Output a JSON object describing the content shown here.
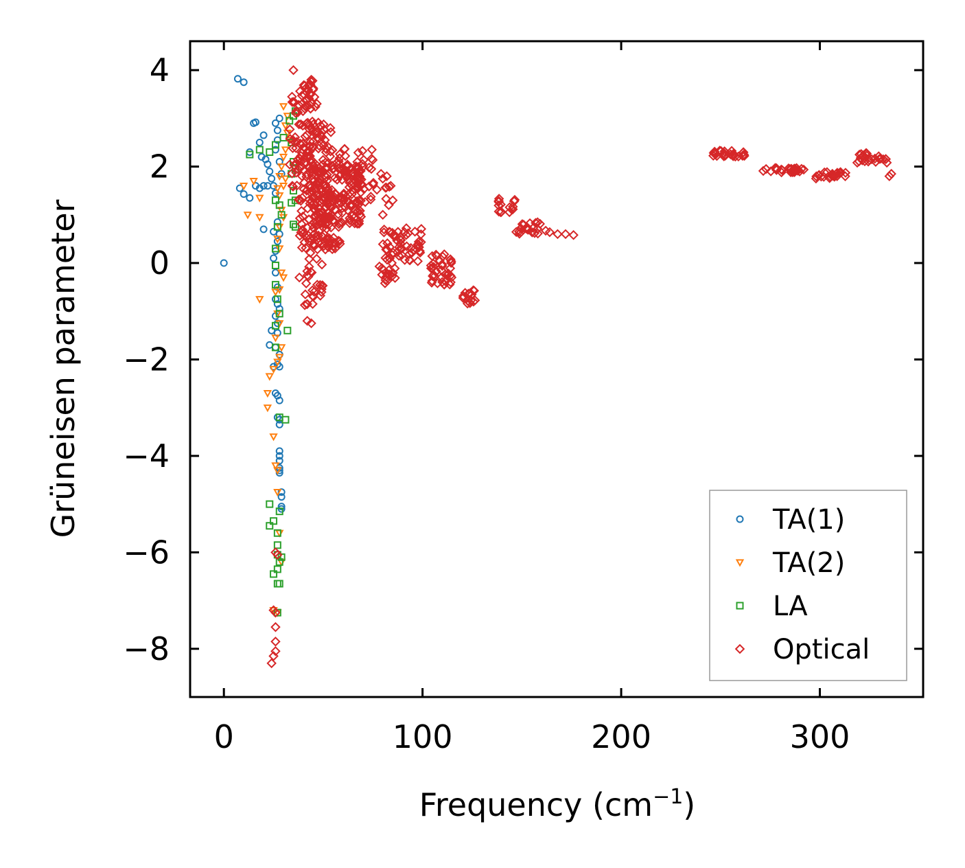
{
  "chart_data": {
    "type": "scatter",
    "title": "",
    "xlabel": "Frequency (cm",
    "xlabel_superscript": "−1",
    "xlabel_suffix": ")",
    "ylabel": "Grüneisen parameter",
    "xlim": [
      -17,
      352
    ],
    "ylim": [
      -9,
      4.6
    ],
    "xticks": [
      0,
      100,
      200,
      300
    ],
    "xtick_labels": [
      "0",
      "100",
      "200",
      "300"
    ],
    "yticks": [
      4,
      2,
      0,
      -2,
      -4,
      -6,
      -8
    ],
    "ytick_labels": [
      "4",
      "2",
      "0",
      "−2",
      "−4",
      "−6",
      "−8"
    ],
    "grid": false,
    "legend_position": "lower-right",
    "series": [
      {
        "name": "TA(1)",
        "marker": "circle",
        "color": "#1f77b4",
        "points": [
          [
            0,
            0
          ],
          [
            7,
            3.82
          ],
          [
            10,
            3.75
          ],
          [
            15,
            2.9
          ],
          [
            16,
            2.92
          ],
          [
            18,
            2.5
          ],
          [
            20,
            2.65
          ],
          [
            13,
            2.3
          ],
          [
            8,
            1.55
          ],
          [
            10,
            1.43
          ],
          [
            13,
            1.35
          ],
          [
            16,
            1.6
          ],
          [
            18,
            1.55
          ],
          [
            20,
            1.6
          ],
          [
            19,
            2.2
          ],
          [
            21,
            2.15
          ],
          [
            22,
            2.05
          ],
          [
            23,
            1.9
          ],
          [
            24,
            1.75
          ],
          [
            25,
            1.6
          ],
          [
            26,
            1.45
          ],
          [
            26,
            2.35
          ],
          [
            27,
            2.55
          ],
          [
            27,
            2.75
          ],
          [
            28,
            3.0
          ],
          [
            26,
            2.9
          ],
          [
            28,
            2.1
          ],
          [
            29,
            1.85
          ],
          [
            22,
            1.6
          ],
          [
            20,
            0.7
          ],
          [
            25,
            0.65
          ],
          [
            27,
            0.85
          ],
          [
            28,
            0.6
          ],
          [
            27,
            0.45
          ],
          [
            26,
            0.25
          ],
          [
            25,
            0.1
          ],
          [
            26,
            -0.2
          ],
          [
            27,
            -0.5
          ],
          [
            26,
            -0.75
          ],
          [
            27,
            -0.85
          ],
          [
            28,
            -0.95
          ],
          [
            26,
            -1.1
          ],
          [
            27,
            -1.25
          ],
          [
            27,
            -1.45
          ],
          [
            24,
            -1.4
          ],
          [
            23,
            -1.7
          ],
          [
            26,
            -1.75
          ],
          [
            28,
            -1.9
          ],
          [
            27,
            -2.1
          ],
          [
            25,
            -2.15
          ],
          [
            28,
            -2.15
          ],
          [
            26,
            -2.7
          ],
          [
            27,
            -2.75
          ],
          [
            28,
            -2.85
          ],
          [
            27,
            -3.2
          ],
          [
            28,
            -3.25
          ],
          [
            28,
            -3.35
          ],
          [
            28,
            -3.9
          ],
          [
            28,
            -4.0
          ],
          [
            28,
            -4.1
          ],
          [
            28,
            -4.25
          ],
          [
            28,
            -4.3
          ],
          [
            28,
            -4.35
          ],
          [
            29,
            -4.75
          ],
          [
            29,
            -4.85
          ],
          [
            29,
            -5.05
          ],
          [
            29,
            -5.1
          ]
        ]
      },
      {
        "name": "TA(2)",
        "marker": "triangle-down",
        "color": "#ff7f0e",
        "points": [
          [
            10,
            1.6
          ],
          [
            15,
            1.7
          ],
          [
            18,
            1.35
          ],
          [
            12,
            1.0
          ],
          [
            18,
            0.95
          ],
          [
            30,
            3.25
          ],
          [
            32,
            3.05
          ],
          [
            31,
            2.85
          ],
          [
            32,
            2.7
          ],
          [
            33,
            2.55
          ],
          [
            31,
            2.35
          ],
          [
            30,
            2.2
          ],
          [
            29,
            2.0
          ],
          [
            28,
            1.8
          ],
          [
            27,
            1.55
          ],
          [
            28,
            1.4
          ],
          [
            30,
            1.6
          ],
          [
            31,
            1.75
          ],
          [
            29,
            1.1
          ],
          [
            30,
            0.95
          ],
          [
            28,
            0.75
          ],
          [
            27,
            0.5
          ],
          [
            28,
            0.3
          ],
          [
            29,
            -0.2
          ],
          [
            30,
            -0.3
          ],
          [
            28,
            -0.55
          ],
          [
            26,
            -0.6
          ],
          [
            18,
            -0.75
          ],
          [
            27,
            -1.05
          ],
          [
            28,
            -1.25
          ],
          [
            26,
            -1.55
          ],
          [
            29,
            -1.75
          ],
          [
            28,
            -1.95
          ],
          [
            27,
            -2.05
          ],
          [
            23,
            -2.35
          ],
          [
            25,
            -2.2
          ],
          [
            22,
            -2.7
          ],
          [
            22,
            -3.0
          ],
          [
            25,
            -3.6
          ],
          [
            26,
            -4.2
          ],
          [
            27,
            -4.3
          ],
          [
            27,
            -4.75
          ],
          [
            28,
            -5.6
          ],
          [
            29,
            -6.2
          ],
          [
            27,
            -7.25
          ],
          [
            25,
            -7.2
          ]
        ]
      },
      {
        "name": "LA",
        "marker": "square",
        "color": "#2ca02c",
        "points": [
          [
            13,
            2.25
          ],
          [
            18,
            2.35
          ],
          [
            23,
            2.3
          ],
          [
            26,
            2.45
          ],
          [
            30,
            2.6
          ],
          [
            33,
            2.95
          ],
          [
            35,
            3.05
          ],
          [
            36,
            3.15
          ],
          [
            34,
            2.5
          ],
          [
            35,
            2.1
          ],
          [
            36,
            1.95
          ],
          [
            34,
            1.85
          ],
          [
            35,
            1.5
          ],
          [
            34,
            1.25
          ],
          [
            36,
            1.3
          ],
          [
            35,
            0.8
          ],
          [
            36,
            0.75
          ],
          [
            26,
            1.3
          ],
          [
            28,
            1.2
          ],
          [
            29,
            1.0
          ],
          [
            27,
            0.75
          ],
          [
            26,
            0.3
          ],
          [
            26,
            -0.05
          ],
          [
            26,
            -0.45
          ],
          [
            27,
            -0.75
          ],
          [
            28,
            -1.05
          ],
          [
            26,
            -1.3
          ],
          [
            32,
            -1.4
          ],
          [
            26,
            -1.75
          ],
          [
            28,
            -3.2
          ],
          [
            31,
            -3.25
          ],
          [
            23,
            -5.0
          ],
          [
            28,
            -5.15
          ],
          [
            25,
            -5.35
          ],
          [
            23,
            -5.45
          ],
          [
            27,
            -5.6
          ],
          [
            27,
            -5.85
          ],
          [
            27,
            -6.05
          ],
          [
            29,
            -6.1
          ],
          [
            28,
            -6.2
          ],
          [
            27,
            -6.35
          ],
          [
            25,
            -6.45
          ],
          [
            27,
            -6.65
          ],
          [
            28,
            -6.65
          ],
          [
            27,
            -7.25
          ]
        ]
      },
      {
        "name": "Optical",
        "marker": "diamond",
        "color": "#d62728",
        "clusters": [
          {
            "xr": [
              33,
              48
            ],
            "yr": [
              1.3,
              3.6
            ],
            "n": 90
          },
          {
            "xr": [
              38,
              55
            ],
            "yr": [
              0.2,
              2.9
            ],
            "n": 130
          },
          {
            "xr": [
              44,
              70
            ],
            "yr": [
              0.8,
              2.1
            ],
            "n": 130
          },
          {
            "xr": [
              45,
              60
            ],
            "yr": [
              0.3,
              1.2
            ],
            "n": 50
          },
          {
            "xr": [
              40,
              50
            ],
            "yr": [
              -0.9,
              0.2
            ],
            "n": 22
          },
          {
            "xr": [
              40,
              46
            ],
            "yr": [
              3.3,
              3.8
            ],
            "n": 14
          },
          {
            "xr": [
              57,
              75
            ],
            "yr": [
              1.2,
              2.4
            ],
            "n": 45
          },
          {
            "xr": [
              75,
              85
            ],
            "yr": [
              1.3,
              1.9
            ],
            "n": 8
          },
          {
            "xr": [
              76,
              87
            ],
            "yr": [
              -0.45,
              -0.05
            ],
            "n": 16
          },
          {
            "xr": [
              80,
              100
            ],
            "yr": [
              0.0,
              0.75
            ],
            "n": 55
          },
          {
            "xr": [
              104,
              115
            ],
            "yr": [
              -0.45,
              0.2
            ],
            "n": 40
          },
          {
            "xr": [
              119,
              127
            ],
            "yr": [
              -0.85,
              -0.55
            ],
            "n": 14
          },
          {
            "xr": [
              138,
              147
            ],
            "yr": [
              1.05,
              1.35
            ],
            "n": 18
          },
          {
            "xr": [
              147,
              160
            ],
            "yr": [
              0.6,
              0.85
            ],
            "n": 20
          },
          {
            "xr": [
              245,
              262
            ],
            "yr": [
              2.2,
              2.33
            ],
            "n": 30
          },
          {
            "xr": [
              270,
              292
            ],
            "yr": [
              1.88,
              1.98
            ],
            "n": 30
          },
          {
            "xr": [
              298,
              313
            ],
            "yr": [
              1.75,
              1.9
            ],
            "n": 25
          },
          {
            "xr": [
              317,
              334
            ],
            "yr": [
              2.08,
              2.3
            ],
            "n": 25
          }
        ],
        "points": [
          [
            35,
            4.0
          ],
          [
            44,
            3.8
          ],
          [
            43,
            3.7
          ],
          [
            42,
            -1.2
          ],
          [
            44,
            -1.25
          ],
          [
            80,
            1.75
          ],
          [
            82,
            1.8
          ],
          [
            84,
            1.6
          ],
          [
            80,
            1.0
          ],
          [
            83,
            1.2
          ],
          [
            85,
            1.3
          ],
          [
            162,
            0.67
          ],
          [
            164,
            0.64
          ],
          [
            168,
            0.6
          ],
          [
            172,
            0.6
          ],
          [
            176,
            0.58
          ],
          [
            335,
            1.8
          ],
          [
            336,
            1.85
          ],
          [
            26,
            -6.0
          ],
          [
            27,
            -6.05
          ],
          [
            25,
            -7.2
          ],
          [
            26,
            -7.25
          ],
          [
            26,
            -7.55
          ],
          [
            26,
            -7.85
          ],
          [
            26,
            -8.05
          ],
          [
            25,
            -8.15
          ],
          [
            24,
            -8.3
          ],
          [
            42,
            -0.85
          ],
          [
            41,
            -0.65
          ],
          [
            45,
            -0.7
          ],
          [
            38,
            -0.3
          ],
          [
            47,
            -0.45
          ]
        ]
      }
    ]
  }
}
